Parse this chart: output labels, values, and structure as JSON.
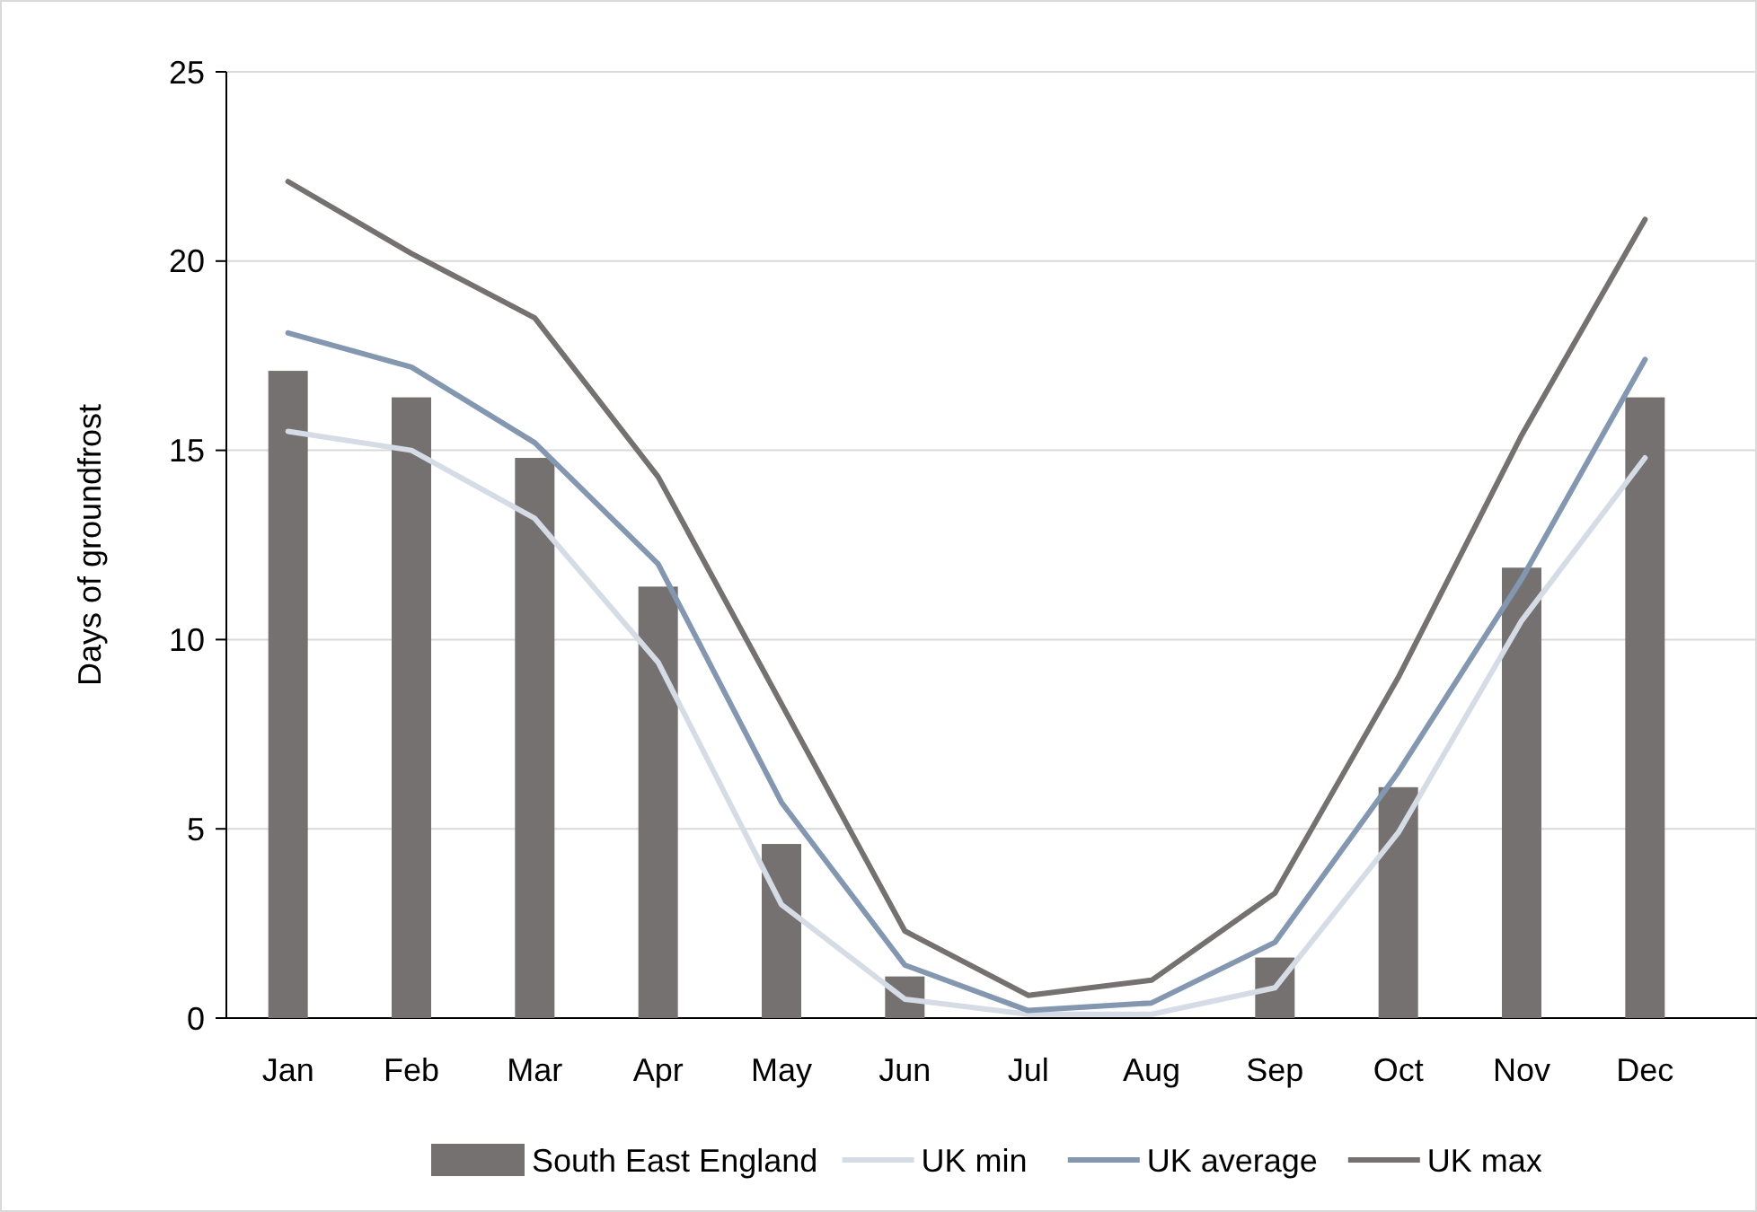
{
  "chart_data": {
    "type": "bar",
    "ylabel": "Days of groundfrost",
    "categories": [
      "Jan",
      "Feb",
      "Mar",
      "Apr",
      "May",
      "Jun",
      "Jul",
      "Aug",
      "Sep",
      "Oct",
      "Nov",
      "Dec"
    ],
    "series": [
      {
        "name": "South East England",
        "color": "#767171",
        "values": [
          17.1,
          16.4,
          14.8,
          11.4,
          4.6,
          1.1,
          null,
          0,
          1.6,
          6.1,
          11.9,
          16.4
        ]
      },
      {
        "name": "UK min",
        "type": "line",
        "color": "#d6dce5",
        "values": [
          15.5,
          15,
          13.2,
          9.4,
          3,
          0.5,
          0.1,
          0.1,
          0.8,
          4.9,
          10.5,
          14.8
        ]
      },
      {
        "name": "UK average",
        "type": "line",
        "color": "#8497b0",
        "values": [
          18.1,
          17.2,
          15.2,
          12,
          5.7,
          1.4,
          0.2,
          0.4,
          2,
          6.5,
          11.6,
          17.4
        ]
      },
      {
        "name": "UK max",
        "type": "line",
        "color": "#767171",
        "values": [
          22.1,
          20.2,
          18.5,
          14.3,
          8.3,
          2.3,
          0.6,
          1,
          3.3,
          9,
          15.4,
          21.1
        ]
      }
    ],
    "ylim": [
      0,
      25
    ],
    "yticks": [
      0,
      5,
      10,
      15,
      20,
      25
    ],
    "grid": "y",
    "legend": "bottom",
    "line_style": "solid",
    "marker": "none"
  }
}
